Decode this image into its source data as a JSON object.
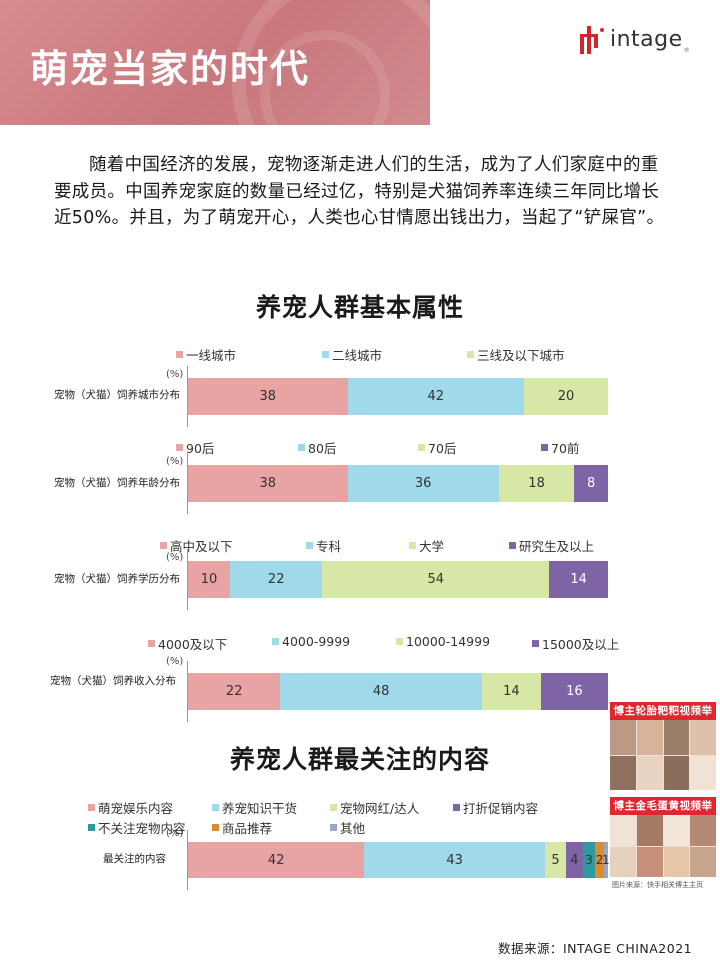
{
  "header": {
    "title": "萌宠当家的时代",
    "logo_text": "intage",
    "logo_tm": "®"
  },
  "intro": "随着中国经济的发展，宠物逐渐走进人们的生活，成为了人们家庭中的重要成员。中国养宠家庭的数量已经过亿，特别是犬猫饲养率连续三年同比增长近50%。并且，为了萌宠开心，人类也心甘情愿出钱出力，当起了“铲屎官”。",
  "section1_title": "养宠人群基本属性",
  "section2_title": "养宠人群最关注的内容",
  "colors": {
    "pink": "#e8a3a4",
    "blue": "#9fd9ea",
    "green": "#d7e8a6",
    "purple": "#7f63a7",
    "teal": "#2e9aa0",
    "orange": "#d98b2f",
    "gray": "#98a6c8"
  },
  "chart_data": [
    {
      "type": "bar",
      "stacked": true,
      "orientation": "horizontal",
      "unit": "(%)",
      "categories": [
        "宠物（犬猫）饲养城市分布"
      ],
      "series": [
        {
          "name": "一线城市",
          "values": [
            38
          ]
        },
        {
          "name": "二线城市",
          "values": [
            42
          ]
        },
        {
          "name": "三线及以下城市",
          "values": [
            20
          ]
        }
      ]
    },
    {
      "type": "bar",
      "stacked": true,
      "orientation": "horizontal",
      "unit": "(%)",
      "categories": [
        "宠物（犬猫）饲养年龄分布"
      ],
      "series": [
        {
          "name": "90后",
          "values": [
            38
          ]
        },
        {
          "name": "80后",
          "values": [
            36
          ]
        },
        {
          "name": "70后",
          "values": [
            18
          ]
        },
        {
          "name": "70前",
          "values": [
            8
          ]
        }
      ]
    },
    {
      "type": "bar",
      "stacked": true,
      "orientation": "horizontal",
      "unit": "(%)",
      "categories": [
        "宠物（犬猫）饲养学历分布"
      ],
      "series": [
        {
          "name": "高中及以下",
          "values": [
            10
          ]
        },
        {
          "name": "专科",
          "values": [
            22
          ]
        },
        {
          "name": "大学",
          "values": [
            54
          ]
        },
        {
          "name": "研究生及以上",
          "values": [
            14
          ]
        }
      ]
    },
    {
      "type": "bar",
      "stacked": true,
      "orientation": "horizontal",
      "unit": "(%)",
      "categories": [
        "宠物（犬猫）饲养收入分布"
      ],
      "series": [
        {
          "name": "4000及以下",
          "values": [
            22
          ]
        },
        {
          "name": "4000-9999",
          "values": [
            48
          ]
        },
        {
          "name": "10000-14999",
          "values": [
            14
          ]
        },
        {
          "name": "15000及以上",
          "values": [
            16
          ]
        }
      ]
    },
    {
      "type": "bar",
      "stacked": true,
      "orientation": "horizontal",
      "unit": "(%)",
      "categories": [
        "最关注的内容"
      ],
      "series": [
        {
          "name": "萌宠娱乐内容",
          "values": [
            42
          ]
        },
        {
          "name": "养宠知识干货",
          "values": [
            43
          ]
        },
        {
          "name": "宠物网红/达人",
          "values": [
            5
          ]
        },
        {
          "name": "打折促销内容",
          "values": [
            4
          ]
        },
        {
          "name": "不关注宠物内容",
          "values": [
            3
          ]
        },
        {
          "name": "商品推荐",
          "values": [
            2
          ]
        },
        {
          "name": "其他",
          "values": [
            1
          ]
        }
      ]
    }
  ],
  "thumbs": {
    "title1": "博主轮胎粑粑视频举例",
    "title2": "博主金毛蛋黄视频举例",
    "credit": "图片来源：快手相关博主主页"
  },
  "source": "数据来源：INTAGE CHINA2021"
}
